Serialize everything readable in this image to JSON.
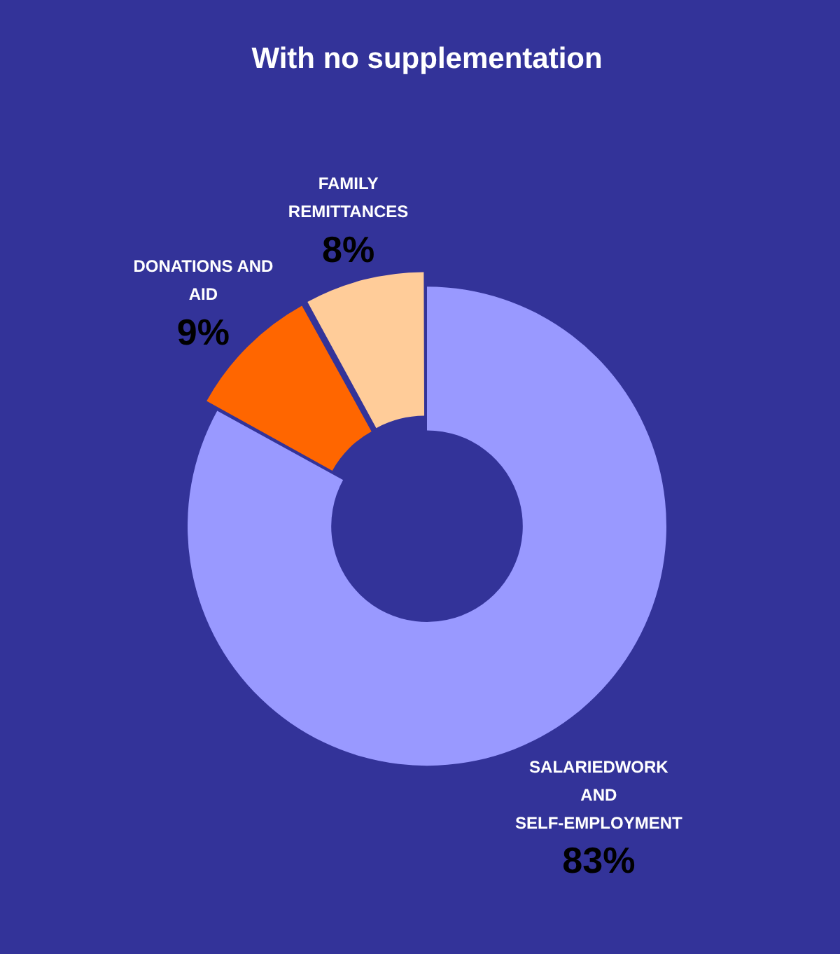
{
  "chart_data": {
    "type": "donut",
    "title": "With no supplementation",
    "categories": [
      "SALARIEDWORK AND SELF-EMPLOYMENT",
      "DONATIONS AND AID",
      "FAMILY REMITTANCES"
    ],
    "values": [
      83,
      9,
      8
    ],
    "colors": [
      "#9999ff",
      "#ff6600",
      "#ffcc99"
    ],
    "value_labels": [
      "83%",
      "9%",
      "8%"
    ],
    "legend": false
  }
}
